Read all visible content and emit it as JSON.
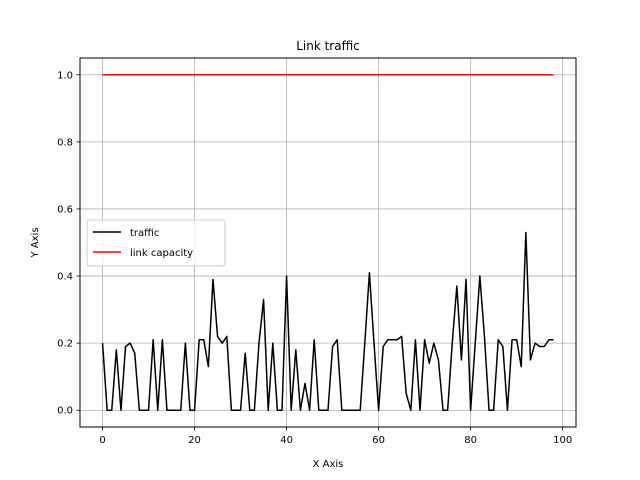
{
  "chart_data": {
    "type": "line",
    "title": "Link traffic",
    "xlabel": "X Axis",
    "ylabel": "Y Axis",
    "xlim": [
      -4.9,
      102.9
    ],
    "ylim": [
      -0.05,
      1.05
    ],
    "xticks": [
      0,
      20,
      40,
      60,
      80,
      100
    ],
    "yticks": [
      0.0,
      0.2,
      0.4,
      0.6,
      0.8,
      1.0
    ],
    "xtick_labels": [
      "0",
      "20",
      "40",
      "60",
      "80",
      "100"
    ],
    "ytick_labels": [
      "0.0",
      "0.2",
      "0.4",
      "0.6",
      "0.8",
      "1.0"
    ],
    "grid": true,
    "legend_position": "center-left",
    "series": [
      {
        "name": "traffic",
        "color": "#000000",
        "x": [
          0,
          1,
          2,
          3,
          4,
          5,
          6,
          7,
          8,
          9,
          10,
          11,
          12,
          13,
          14,
          15,
          16,
          17,
          18,
          19,
          20,
          21,
          22,
          23,
          24,
          25,
          26,
          27,
          28,
          29,
          30,
          31,
          32,
          33,
          34,
          35,
          36,
          37,
          38,
          39,
          40,
          41,
          42,
          43,
          44,
          45,
          46,
          47,
          48,
          49,
          50,
          51,
          52,
          53,
          54,
          55,
          56,
          57,
          58,
          59,
          60,
          61,
          62,
          63,
          64,
          65,
          66,
          67,
          68,
          69,
          70,
          71,
          72,
          73,
          74,
          75,
          76,
          77,
          78,
          79,
          80,
          81,
          82,
          83,
          84,
          85,
          86,
          87,
          88,
          89,
          90,
          91,
          92,
          93,
          94,
          95,
          96,
          97,
          98
        ],
        "y": [
          0.2,
          0,
          0,
          0.18,
          0,
          0.19,
          0.2,
          0.17,
          0,
          0,
          0,
          0.21,
          0,
          0.21,
          0,
          0,
          0,
          0,
          0.2,
          0,
          0,
          0.21,
          0.21,
          0.13,
          0.39,
          0.22,
          0.2,
          0.22,
          0,
          0,
          0,
          0.17,
          0,
          0,
          0.2,
          0.33,
          0,
          0.2,
          0,
          0,
          0.4,
          0,
          0.18,
          0,
          0.08,
          0,
          0.21,
          0,
          0,
          0,
          0.19,
          0.21,
          0,
          0,
          0,
          0,
          0,
          0.2,
          0.41,
          0.2,
          0,
          0.19,
          0.21,
          0.21,
          0.21,
          0.22,
          0.05,
          0,
          0.21,
          0,
          0.21,
          0.14,
          0.2,
          0.15,
          0,
          0,
          0.2,
          0.37,
          0.15,
          0.39,
          0,
          0.2,
          0.4,
          0.22,
          0,
          0,
          0.21,
          0.19,
          0,
          0.21,
          0.21,
          0.13,
          0.53,
          0.15,
          0.2,
          0.19,
          0.19,
          0.21,
          0.21
        ]
      },
      {
        "name": "link capacity",
        "color": "#ff0000",
        "x": [
          0,
          98
        ],
        "y": [
          1.0,
          1.0
        ]
      }
    ]
  }
}
